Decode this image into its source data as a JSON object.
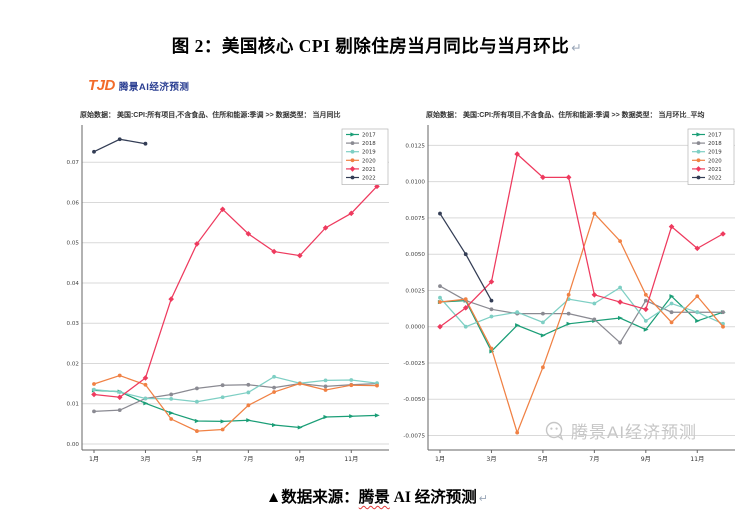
{
  "title": {
    "text": "图 2：美国核心 CPI 剔除住房当月同比与当月环比",
    "return_mark": "↵"
  },
  "logo": {
    "mark": "TJD",
    "name": "腾景AI经济预测"
  },
  "watermark": {
    "text": "腾景AI经济预测"
  },
  "caption": {
    "prefix": "▲数据来源：",
    "brand": "腾景",
    "suffix": " AI 经济预测",
    "return_mark": "↵"
  },
  "colors": {
    "y2017": "#1b9e77",
    "y2018": "#8a8a92",
    "y2019": "#7ecfc4",
    "y2020": "#f08144",
    "y2021": "#ee3a5e",
    "y2022": "#333d55",
    "grid": "#d9d9d9",
    "axis": "#666666"
  },
  "chart_data": [
    {
      "type": "line",
      "title": "原始数据： 美国:CPI:所有项目,不含食品、住所和能源:季调 >> 数据类型： 当月同比",
      "x": [
        "1月",
        "2月",
        "3月",
        "4月",
        "5月",
        "6月",
        "7月",
        "8月",
        "9月",
        "10月",
        "11月",
        "12月"
      ],
      "x_tick_indices": [
        0,
        2,
        4,
        6,
        8,
        10
      ],
      "ylim": [
        -0.0015,
        0.0785
      ],
      "yticks": [
        0,
        0.01,
        0.02,
        0.03,
        0.04,
        0.05,
        0.06,
        0.07
      ],
      "ytick_labels": [
        "0.00",
        "0.01",
        "0.02",
        "0.03",
        "0.04",
        "0.05",
        "0.06",
        "0.07"
      ],
      "grid": true,
      "legend_position": "top-right",
      "series": [
        {
          "name": "2017",
          "color": "#1b9e77",
          "marker": "triangle",
          "values": [
            0.0133,
            0.013,
            0.0101,
            0.0077,
            0.0057,
            0.0056,
            0.0059,
            0.0047,
            0.0041,
            0.0067,
            0.0069,
            0.0071
          ]
        },
        {
          "name": "2018",
          "color": "#8a8a92",
          "marker": "circle",
          "values": [
            0.0081,
            0.0084,
            0.0113,
            0.0123,
            0.0138,
            0.0146,
            0.0147,
            0.014,
            0.015,
            0.0143,
            0.0147,
            0.015
          ]
        },
        {
          "name": "2019",
          "color": "#7ecfc4",
          "marker": "circle",
          "values": [
            0.0135,
            0.0129,
            0.0113,
            0.0112,
            0.0105,
            0.0116,
            0.0128,
            0.0167,
            0.0151,
            0.0158,
            0.0159,
            0.0151
          ]
        },
        {
          "name": "2020",
          "color": "#f08144",
          "marker": "circle",
          "values": [
            0.0149,
            0.017,
            0.0147,
            0.0062,
            0.0032,
            0.0036,
            0.0096,
            0.0129,
            0.015,
            0.0134,
            0.0146,
            0.0145
          ]
        },
        {
          "name": "2021",
          "color": "#ee3a5e",
          "marker": "diamond",
          "values": [
            0.0123,
            0.0116,
            0.0164,
            0.036,
            0.0497,
            0.0583,
            0.0522,
            0.0478,
            0.0468,
            0.0537,
            0.0573,
            0.064
          ]
        },
        {
          "name": "2022",
          "color": "#333d55",
          "marker": "circle",
          "values": [
            0.0726,
            0.0757,
            0.0746
          ]
        }
      ]
    },
    {
      "type": "line",
      "title": "原始数据： 美国:CPI:所有项目,不含食品、住所和能源:季调 >> 数据类型： 当月环比_平均",
      "x": [
        "1月",
        "2月",
        "3月",
        "4月",
        "5月",
        "6月",
        "7月",
        "8月",
        "9月",
        "10月",
        "11月",
        "12月"
      ],
      "x_tick_indices": [
        0,
        2,
        4,
        6,
        8,
        10
      ],
      "ylim": [
        -0.0085,
        0.0137
      ],
      "yticks": [
        -0.0075,
        -0.005,
        -0.0025,
        0,
        0.0025,
        0.005,
        0.0075,
        0.01,
        0.0125
      ],
      "ytick_labels": [
        "-0.0075",
        "-0.0050",
        "-0.0025",
        "0.0000",
        "0.0025",
        "0.0050",
        "0.0075",
        "0.0100",
        "0.0125"
      ],
      "grid": true,
      "legend_position": "top-right",
      "series": [
        {
          "name": "2017",
          "color": "#1b9e77",
          "marker": "triangle",
          "values": [
            0.0017,
            0.0018,
            -0.0017,
            0.0001,
            -0.0006,
            0.0002,
            0.0004,
            0.0006,
            -0.0002,
            0.0021,
            0.0004,
            0.001
          ]
        },
        {
          "name": "2018",
          "color": "#8a8a92",
          "marker": "circle",
          "values": [
            0.0028,
            0.0018,
            0.0012,
            0.0009,
            0.0009,
            0.0009,
            0.0005,
            -0.0011,
            0.0018,
            0.001,
            0.001,
            0.001
          ]
        },
        {
          "name": "2019",
          "color": "#7ecfc4",
          "marker": "circle",
          "values": [
            0.002,
            0.0,
            0.0007,
            0.001,
            0.0003,
            0.0019,
            0.0016,
            0.0027,
            0.0004,
            0.0016,
            0.001,
            0.0002
          ]
        },
        {
          "name": "2020",
          "color": "#f08144",
          "marker": "circle",
          "values": [
            0.0017,
            0.0019,
            -0.0015,
            -0.0073,
            -0.0028,
            0.0022,
            0.0078,
            0.0059,
            0.0022,
            0.0003,
            0.0021,
            0.0
          ]
        },
        {
          "name": "2021",
          "color": "#ee3a5e",
          "marker": "diamond",
          "values": [
            0.0,
            0.0013,
            0.0031,
            0.0119,
            0.0103,
            0.0103,
            0.0022,
            0.0017,
            0.0012,
            0.0069,
            0.0054,
            0.0064
          ]
        },
        {
          "name": "2022",
          "color": "#333d55",
          "marker": "circle",
          "values": [
            0.0078,
            0.005,
            0.0018
          ]
        }
      ]
    }
  ]
}
